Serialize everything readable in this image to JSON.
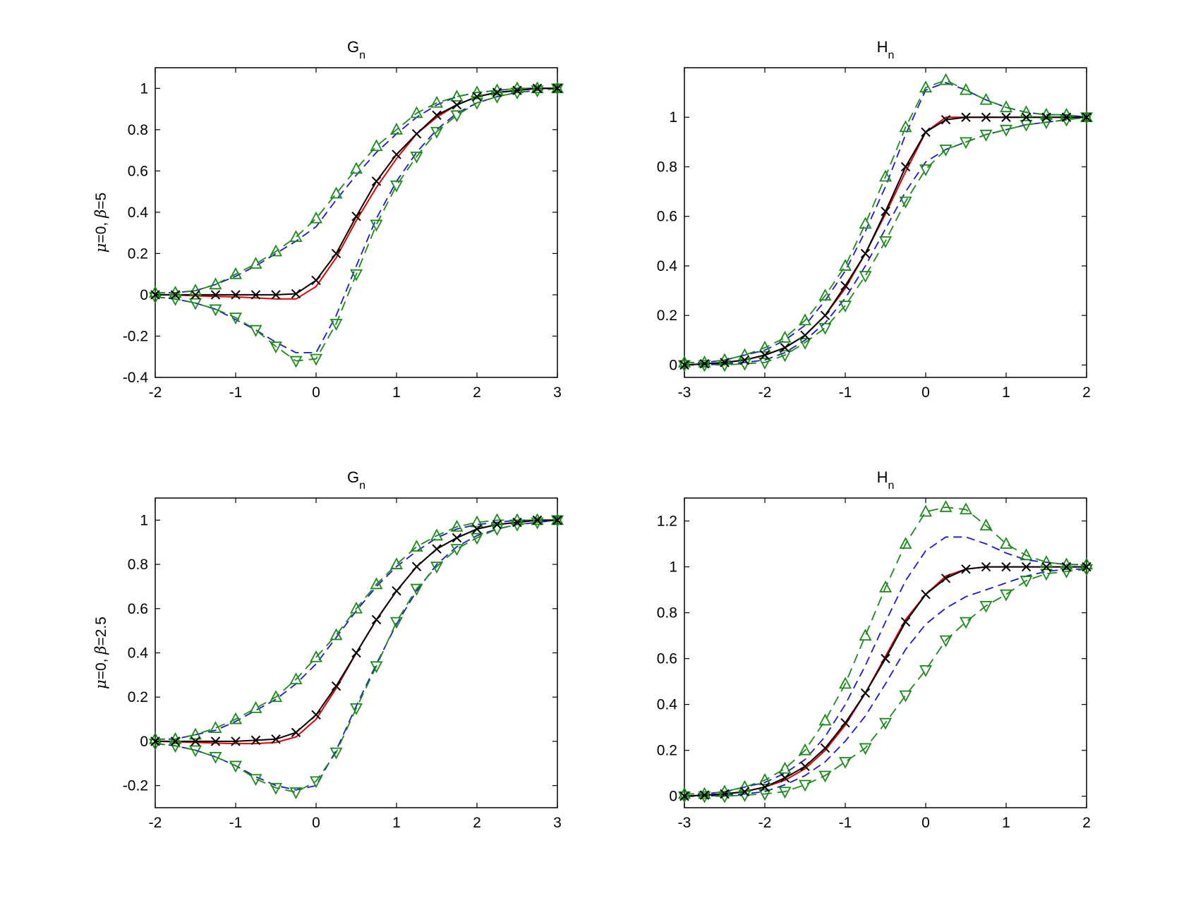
{
  "figure": {
    "colors": {
      "true_fn": "#e00000",
      "estimate": "#000000",
      "band_outer": "#1a8a1a",
      "band_inner": "#1a1acc",
      "axes": "#000000"
    }
  },
  "chart_data": [
    {
      "type": "line",
      "title": "G",
      "title_sub": "n",
      "ylabel_mu": "μ",
      "ylabel_rest": "=0, ",
      "ylabel_beta": "β",
      "ylabel_val": "=5",
      "xlim": [
        -2,
        3
      ],
      "ylim": [
        -0.4,
        1.1
      ],
      "xticks": [
        -2,
        -1,
        0,
        1,
        2,
        3
      ],
      "yticks": [
        -0.4,
        -0.2,
        0,
        0.2,
        0.4,
        0.6,
        0.8,
        1
      ],
      "x": [
        -2,
        -1.75,
        -1.5,
        -1.25,
        -1,
        -0.75,
        -0.5,
        -0.25,
        0,
        0.25,
        0.5,
        0.75,
        1,
        1.25,
        1.5,
        1.75,
        2,
        2.25,
        2.5,
        2.75,
        3
      ],
      "series": [
        {
          "role": "red",
          "style": "solid",
          "marker": "none",
          "values": [
            0,
            0,
            -0.005,
            -0.008,
            -0.01,
            -0.015,
            -0.02,
            -0.02,
            0.04,
            0.18,
            0.36,
            0.52,
            0.66,
            0.78,
            0.86,
            0.92,
            0.96,
            0.98,
            0.99,
            1,
            1
          ]
        },
        {
          "role": "black",
          "style": "solid",
          "marker": "x",
          "values": [
            0,
            0,
            0,
            0,
            0,
            0,
            0,
            0.005,
            0.07,
            0.2,
            0.38,
            0.55,
            0.68,
            0.78,
            0.87,
            0.92,
            0.96,
            0.98,
            0.99,
            1,
            1
          ]
        },
        {
          "role": "blue",
          "style": "dashed",
          "marker": "none",
          "values": [
            0.01,
            0.01,
            0.02,
            0.05,
            0.09,
            0.14,
            0.2,
            0.26,
            0.33,
            0.46,
            0.58,
            0.69,
            0.78,
            0.86,
            0.92,
            0.96,
            0.98,
            0.99,
            1,
            1,
            1
          ]
        },
        {
          "role": "blue",
          "style": "dashed",
          "marker": "none",
          "values": [
            -0.01,
            -0.02,
            -0.04,
            -0.07,
            -0.12,
            -0.17,
            -0.23,
            -0.28,
            -0.28,
            -0.1,
            0.14,
            0.37,
            0.55,
            0.69,
            0.8,
            0.88,
            0.93,
            0.96,
            0.98,
            0.99,
            1
          ]
        },
        {
          "role": "green",
          "style": "dashed",
          "marker": "triangle-up",
          "values": [
            0.01,
            0.01,
            0.02,
            0.05,
            0.1,
            0.15,
            0.21,
            0.28,
            0.37,
            0.49,
            0.61,
            0.72,
            0.8,
            0.88,
            0.93,
            0.96,
            0.98,
            0.99,
            1,
            1,
            1
          ]
        },
        {
          "role": "green",
          "style": "dashed",
          "marker": "triangle-down",
          "values": [
            -0.01,
            -0.02,
            -0.04,
            -0.07,
            -0.11,
            -0.17,
            -0.25,
            -0.32,
            -0.31,
            -0.14,
            0.1,
            0.34,
            0.53,
            0.67,
            0.79,
            0.87,
            0.93,
            0.96,
            0.98,
            0.99,
            1
          ]
        }
      ]
    },
    {
      "type": "line",
      "title": "H",
      "title_sub": "n",
      "xlim": [
        -3,
        2
      ],
      "ylim": [
        -0.05,
        1.2
      ],
      "xticks": [
        -3,
        -2,
        -1,
        0,
        1,
        2
      ],
      "yticks": [
        0,
        0.2,
        0.4,
        0.6,
        0.8,
        1
      ],
      "x": [
        -3,
        -2.75,
        -2.5,
        -2.25,
        -2,
        -1.75,
        -1.5,
        -1.25,
        -1,
        -0.75,
        -0.5,
        -0.25,
        0,
        0.25,
        0.5,
        0.75,
        1,
        1.25,
        1.5,
        1.75,
        2
      ],
      "series": [
        {
          "role": "red",
          "style": "solid",
          "marker": "none",
          "values": [
            0,
            0.005,
            0.01,
            0.02,
            0.04,
            0.07,
            0.12,
            0.2,
            0.31,
            0.45,
            0.61,
            0.78,
            0.94,
            1.0,
            1.0,
            1.0,
            1.0,
            1.0,
            1.0,
            1.0,
            1.0
          ]
        },
        {
          "role": "black",
          "style": "solid",
          "marker": "x",
          "values": [
            0,
            0.005,
            0.01,
            0.02,
            0.04,
            0.07,
            0.12,
            0.2,
            0.32,
            0.45,
            0.62,
            0.8,
            0.94,
            0.99,
            1.0,
            1.0,
            1.0,
            1.0,
            1.0,
            1.0,
            1.0
          ]
        },
        {
          "role": "blue",
          "style": "dashed",
          "marker": "none",
          "values": [
            0.01,
            0.01,
            0.02,
            0.04,
            0.06,
            0.1,
            0.16,
            0.26,
            0.38,
            0.54,
            0.72,
            0.93,
            1.11,
            1.14,
            1.11,
            1.07,
            1.04,
            1.02,
            1.01,
            1.01,
            1.0
          ]
        },
        {
          "role": "blue",
          "style": "dashed",
          "marker": "none",
          "values": [
            0,
            0,
            0.005,
            0.01,
            0.02,
            0.05,
            0.1,
            0.17,
            0.27,
            0.4,
            0.55,
            0.7,
            0.82,
            0.87,
            0.9,
            0.93,
            0.95,
            0.97,
            0.98,
            0.99,
            1.0
          ]
        },
        {
          "role": "green",
          "style": "dashed",
          "marker": "triangle-up",
          "values": [
            0.01,
            0.01,
            0.02,
            0.04,
            0.07,
            0.11,
            0.18,
            0.28,
            0.4,
            0.57,
            0.76,
            0.96,
            1.12,
            1.15,
            1.11,
            1.07,
            1.04,
            1.02,
            1.01,
            1.01,
            1.0
          ]
        },
        {
          "role": "green",
          "style": "dashed",
          "marker": "triangle-down",
          "values": [
            0,
            0,
            0,
            0.005,
            0.01,
            0.04,
            0.09,
            0.15,
            0.24,
            0.36,
            0.5,
            0.66,
            0.79,
            0.87,
            0.9,
            0.93,
            0.95,
            0.97,
            0.98,
            0.99,
            1.0
          ]
        }
      ]
    },
    {
      "type": "line",
      "title": "G",
      "title_sub": "n",
      "ylabel_mu": "μ",
      "ylabel_rest": "=0, ",
      "ylabel_beta": "β",
      "ylabel_val": "=2.5",
      "xlim": [
        -2,
        3
      ],
      "ylim": [
        -0.3,
        1.1
      ],
      "xticks": [
        -2,
        -1,
        0,
        1,
        2,
        3
      ],
      "yticks": [
        -0.2,
        0,
        0.2,
        0.4,
        0.6,
        0.8,
        1
      ],
      "x": [
        -2,
        -1.75,
        -1.5,
        -1.25,
        -1,
        -0.75,
        -0.5,
        -0.25,
        0,
        0.25,
        0.5,
        0.75,
        1,
        1.25,
        1.5,
        1.75,
        2,
        2.25,
        2.5,
        2.75,
        3
      ],
      "series": [
        {
          "role": "red",
          "style": "solid",
          "marker": "none",
          "values": [
            0,
            -0.002,
            -0.005,
            -0.008,
            -0.01,
            -0.01,
            -0.005,
            0.02,
            0.1,
            0.24,
            0.4,
            0.55,
            0.68,
            0.79,
            0.87,
            0.92,
            0.96,
            0.98,
            0.99,
            1,
            1
          ]
        },
        {
          "role": "black",
          "style": "solid",
          "marker": "x",
          "values": [
            0,
            0,
            0,
            0,
            0,
            0.005,
            0.01,
            0.04,
            0.12,
            0.25,
            0.4,
            0.55,
            0.68,
            0.79,
            0.87,
            0.92,
            0.96,
            0.98,
            0.99,
            1,
            1
          ]
        },
        {
          "role": "blue",
          "style": "dashed",
          "marker": "none",
          "values": [
            0.01,
            0.01,
            0.03,
            0.05,
            0.09,
            0.14,
            0.19,
            0.26,
            0.35,
            0.47,
            0.59,
            0.7,
            0.79,
            0.86,
            0.92,
            0.96,
            0.98,
            0.99,
            1,
            1,
            1
          ]
        },
        {
          "role": "blue",
          "style": "dashed",
          "marker": "none",
          "values": [
            -0.01,
            -0.02,
            -0.04,
            -0.07,
            -0.11,
            -0.16,
            -0.2,
            -0.22,
            -0.2,
            -0.04,
            0.16,
            0.35,
            0.53,
            0.68,
            0.8,
            0.88,
            0.93,
            0.96,
            0.98,
            0.99,
            1
          ]
        },
        {
          "role": "green",
          "style": "dashed",
          "marker": "triangle-up",
          "values": [
            0.01,
            0.01,
            0.03,
            0.06,
            0.1,
            0.15,
            0.2,
            0.28,
            0.38,
            0.48,
            0.6,
            0.71,
            0.8,
            0.88,
            0.93,
            0.97,
            0.99,
            1,
            1,
            1,
            1
          ]
        },
        {
          "role": "green",
          "style": "dashed",
          "marker": "triangle-down",
          "values": [
            -0.01,
            -0.02,
            -0.04,
            -0.07,
            -0.11,
            -0.17,
            -0.21,
            -0.23,
            -0.18,
            -0.05,
            0.15,
            0.34,
            0.54,
            0.69,
            0.79,
            0.87,
            0.92,
            0.96,
            0.98,
            0.99,
            1
          ]
        }
      ]
    },
    {
      "type": "line",
      "title": "H",
      "title_sub": "n",
      "xlim": [
        -3,
        2
      ],
      "ylim": [
        -0.05,
        1.3
      ],
      "xticks": [
        -3,
        -2,
        -1,
        0,
        1,
        2
      ],
      "yticks": [
        0,
        0.2,
        0.4,
        0.6,
        0.8,
        1,
        1.2
      ],
      "x": [
        -3,
        -2.75,
        -2.5,
        -2.25,
        -2,
        -1.75,
        -1.5,
        -1.25,
        -1,
        -0.75,
        -0.5,
        -0.25,
        0,
        0.25,
        0.5,
        0.75,
        1,
        1.25,
        1.5,
        1.75,
        2
      ],
      "series": [
        {
          "role": "red",
          "style": "solid",
          "marker": "none",
          "values": [
            0,
            0.005,
            0.01,
            0.02,
            0.04,
            0.07,
            0.12,
            0.2,
            0.31,
            0.45,
            0.61,
            0.77,
            0.88,
            0.96,
            0.99,
            1.0,
            1.0,
            1.0,
            1.0,
            1.0,
            1.0
          ]
        },
        {
          "role": "black",
          "style": "solid",
          "marker": "x",
          "values": [
            0,
            0.005,
            0.01,
            0.02,
            0.04,
            0.08,
            0.13,
            0.21,
            0.32,
            0.45,
            0.6,
            0.76,
            0.88,
            0.95,
            0.99,
            1.0,
            1.0,
            1.0,
            1.0,
            1.0,
            1.0
          ]
        },
        {
          "role": "blue",
          "style": "dashed",
          "marker": "none",
          "values": [
            0.01,
            0.01,
            0.02,
            0.04,
            0.06,
            0.1,
            0.16,
            0.26,
            0.4,
            0.57,
            0.76,
            0.94,
            1.07,
            1.13,
            1.13,
            1.1,
            1.06,
            1.03,
            1.02,
            1.01,
            1.01
          ]
        },
        {
          "role": "blue",
          "style": "dashed",
          "marker": "none",
          "values": [
            0,
            0,
            0.005,
            0.01,
            0.02,
            0.05,
            0.09,
            0.15,
            0.24,
            0.35,
            0.49,
            0.64,
            0.75,
            0.82,
            0.87,
            0.9,
            0.93,
            0.96,
            0.98,
            0.99,
            0.99
          ]
        },
        {
          "role": "green",
          "style": "dashed",
          "marker": "triangle-up",
          "values": [
            0.01,
            0.01,
            0.02,
            0.04,
            0.07,
            0.12,
            0.2,
            0.33,
            0.49,
            0.7,
            0.91,
            1.1,
            1.24,
            1.26,
            1.25,
            1.18,
            1.1,
            1.05,
            1.02,
            1.01,
            1.01
          ]
        },
        {
          "role": "green",
          "style": "dashed",
          "marker": "triangle-down",
          "values": [
            0,
            0,
            0,
            0.005,
            0.01,
            0.02,
            0.05,
            0.09,
            0.15,
            0.21,
            0.32,
            0.44,
            0.55,
            0.68,
            0.76,
            0.83,
            0.88,
            0.94,
            0.97,
            0.98,
            0.99
          ]
        }
      ]
    }
  ]
}
